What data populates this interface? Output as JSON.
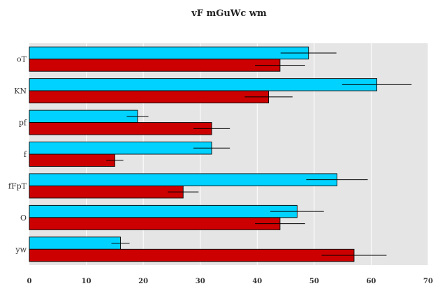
{
  "chart_data": {
    "type": "bar",
    "orientation": "horizontal",
    "title": "vF mGuWc  wm",
    "xlabel": "",
    "ylabel": "",
    "categories": [
      "oT",
      "KN",
      "pf",
      "f",
      "fFpT",
      "O",
      "yw"
    ],
    "series": [
      {
        "color": "#00d2ff",
        "values": [
          49,
          61,
          19,
          32,
          54,
          47,
          16
        ],
        "errors": [
          4.9,
          6.1,
          1.9,
          3.2,
          5.4,
          4.7,
          1.6
        ]
      },
      {
        "color": "#cc0000",
        "values": [
          44,
          42,
          32,
          15,
          27,
          44,
          57
        ],
        "errors": [
          4.4,
          4.2,
          3.2,
          1.5,
          2.7,
          4.4,
          5.7
        ]
      }
    ],
    "xlim": [
      0,
      70
    ],
    "xticks": [
      0,
      10,
      20,
      30,
      40,
      50,
      60,
      70
    ],
    "grid": true,
    "legend": "none",
    "plot_background": "#e5e5e5"
  }
}
